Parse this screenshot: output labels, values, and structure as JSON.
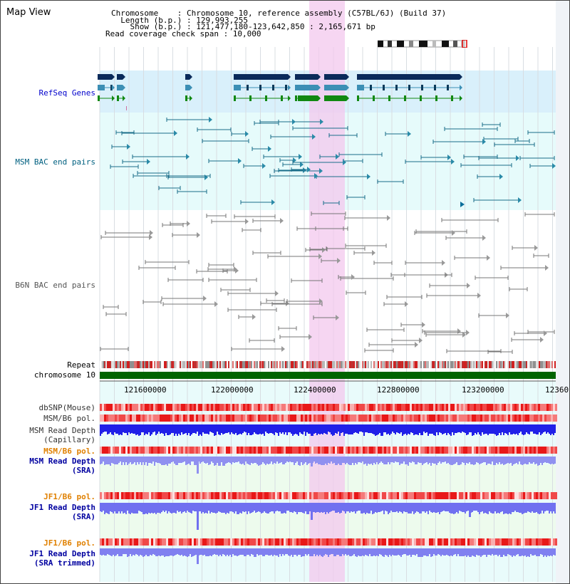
{
  "page": {
    "title": "Map View"
  },
  "header": {
    "chromosome": "Chromosome    : Chromosome 10, reference assembly (C57BL/6J) (Build 37)",
    "length": "  Length (b.p.) : 129,993,255",
    "show": "    Show (b.p.) : 121,477,180-123,642,850 : 2,165,671 bp",
    "coverage": "Read coverage check span : 10,000"
  },
  "tracks": {
    "refseq": "RefSeq Genes",
    "msm_bac": "MSM BAC end pairs",
    "b6n_bac": "B6N BAC end pairs",
    "repeat": "Repeat",
    "chromosome": "chromosome 10",
    "dbsnp": "dbSNP(Mouse)",
    "msm_pol": "MSM/B6 pol.",
    "msm_depth_cap": "MSM Read Depth\n(Capillary)",
    "msm_pol_sra": "MSM/B6 pol.",
    "msm_depth_sra": "MSM Read Depth\n(SRA)",
    "jf1_pol_sra": "JF1/B6 pol.",
    "jf1_depth_sra": "JF1 Read Depth\n(SRA)",
    "jf1_pol_trim": "JF1/B6 pol.",
    "jf1_depth_trim": "JF1 Read Depth\n(SRA trimmed)"
  },
  "ruler": {
    "ticks": [
      "121600000",
      "122000000",
      "122400000",
      "122800000",
      "123200000",
      "12360"
    ]
  },
  "colors": {
    "refseq_bg": "#d9f0fb",
    "bac_bg": "#e6fbfb",
    "highlight": "#f6d6f3",
    "chromosome": "#006400",
    "msm_label": "#0000a0",
    "pol_label": "#e08000"
  }
}
